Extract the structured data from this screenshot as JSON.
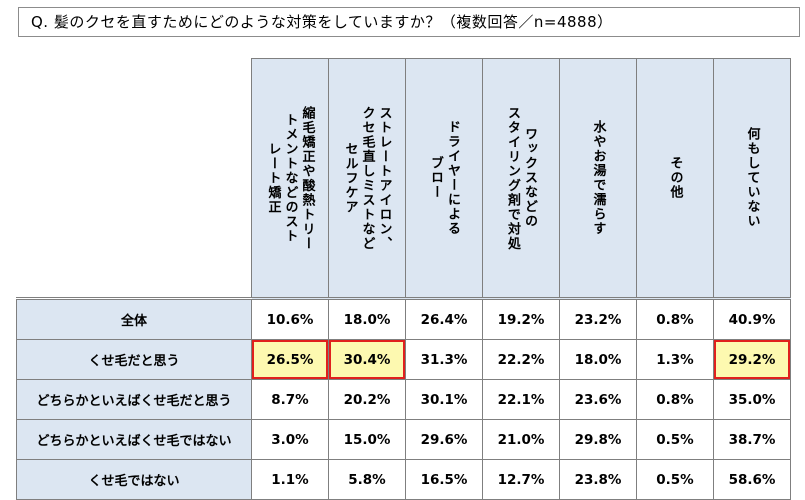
{
  "question": "Q. 髪のクセを直すためにどのような対策をしていますか？（複数回答／n=4888）",
  "chart_data": {
    "type": "table",
    "columns": [
      "縮毛矯正や酸熱トリートメントなどのストレート矯正",
      "ストレートアイロン、クセ毛直しミストなどセルフケア",
      "ドライヤーによるブロー",
      "ワックスなどのスタイリング剤で対処",
      "水やお湯で濡らす",
      "その他",
      "何もしていない"
    ],
    "column_display": [
      "縮毛矯正や酸熱トリー\nトメントなどのスト\nレート矯正",
      "ストレートアイロン、\nクセ毛直しミストなど\nセルフケア",
      "ドライヤーによる\nブロー",
      "ワックスなどの\nスタイリング剤で対処",
      "水やお湯で濡らす",
      "その他",
      "何もしていない"
    ],
    "rows": [
      {
        "label": "全体",
        "values": [
          "10.6%",
          "18.0%",
          "26.4%",
          "19.2%",
          "23.2%",
          "0.8%",
          "40.9%"
        ],
        "highlight": [
          false,
          false,
          false,
          false,
          false,
          false,
          false
        ]
      },
      {
        "label": "くせ毛だと思う",
        "values": [
          "26.5%",
          "30.4%",
          "31.3%",
          "22.2%",
          "18.0%",
          "1.3%",
          "29.2%"
        ],
        "highlight": [
          true,
          true,
          false,
          false,
          false,
          false,
          true
        ]
      },
      {
        "label": "どちらかといえばくせ毛だと思う",
        "values": [
          "8.7%",
          "20.2%",
          "30.1%",
          "22.1%",
          "23.6%",
          "0.8%",
          "35.0%"
        ],
        "highlight": [
          false,
          false,
          false,
          false,
          false,
          false,
          false
        ]
      },
      {
        "label": "どちらかといえばくせ毛ではない",
        "values": [
          "3.0%",
          "15.0%",
          "29.6%",
          "21.0%",
          "29.8%",
          "0.5%",
          "38.7%"
        ],
        "highlight": [
          false,
          false,
          false,
          false,
          false,
          false,
          false
        ]
      },
      {
        "label": "くせ毛ではない",
        "values": [
          "1.1%",
          "5.8%",
          "16.5%",
          "12.7%",
          "23.8%",
          "0.5%",
          "58.6%"
        ],
        "highlight": [
          false,
          false,
          false,
          false,
          false,
          false,
          false
        ]
      }
    ]
  },
  "colors": {
    "header_bg": "#dce6f2",
    "highlight_bg": "#fdf9b0",
    "highlight_border": "#e0201d",
    "border": "#7f7f7f"
  }
}
